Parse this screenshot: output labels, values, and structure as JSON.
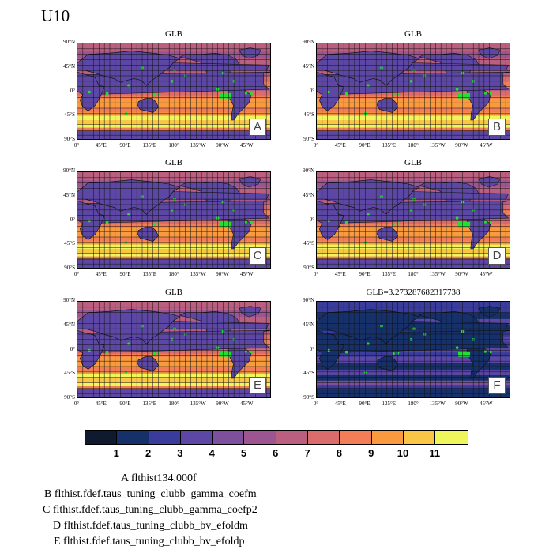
{
  "title": "U10",
  "panels": [
    {
      "id": "A",
      "title": "GLB",
      "variant": 0
    },
    {
      "id": "B",
      "title": "GLB",
      "variant": 1
    },
    {
      "id": "C",
      "title": "GLB",
      "variant": 2
    },
    {
      "id": "D",
      "title": "GLB",
      "variant": 3
    },
    {
      "id": "E",
      "title": "GLB",
      "variant": 4
    },
    {
      "id": "F",
      "title": "GLB=3.273287682317738",
      "variant": 5
    }
  ],
  "y_ticks": [
    "90°N",
    "45°N",
    "0°",
    "45°S",
    "90°S"
  ],
  "x_ticks": [
    "0°",
    "45°E",
    "90°E",
    "135°E",
    "180°",
    "135°W",
    "90°W",
    "45°W"
  ],
  "colorbar": {
    "colors": [
      "#0f1a2e",
      "#16306a",
      "#3a3c9c",
      "#5c48a4",
      "#7e4f9c",
      "#9c5590",
      "#bb5f80",
      "#db6c6c",
      "#f27d56",
      "#f99a3e",
      "#f9c645",
      "#eef65c"
    ],
    "labels": [
      "1",
      "2",
      "3",
      "4",
      "5",
      "6",
      "7",
      "8",
      "9",
      "10",
      "11"
    ]
  },
  "legend": [
    "A  flthist134.000f",
    "B  flthist.fdef.taus_tuning_clubb_gamma_coefm",
    "C  flthist.fdef.taus_tuning_clubb_gamma_coefp2",
    "D  flthist.fdef.taus_tuning_clubb_bv_efoldm",
    "E  flthist.fdef.taus_tuning_clubb_bv_efoldp"
  ]
}
